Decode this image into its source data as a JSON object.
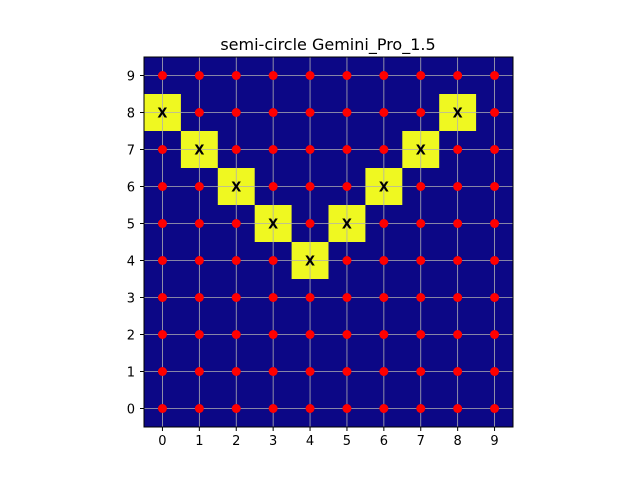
{
  "chart_data": {
    "type": "heatmap",
    "title": "semi-circle Gemini_Pro_1.5",
    "xlabel": "",
    "ylabel": "",
    "xlim": [
      -0.5,
      9.5
    ],
    "ylim": [
      -0.5,
      9.5
    ],
    "x_ticks": [
      "0",
      "1",
      "2",
      "3",
      "4",
      "5",
      "6",
      "7",
      "8",
      "9"
    ],
    "y_ticks": [
      "0",
      "1",
      "2",
      "3",
      "4",
      "5",
      "6",
      "7",
      "8",
      "9"
    ],
    "grid": true,
    "colors": {
      "background": "#0c0786",
      "highlight": "#eff821",
      "point": "#ff0000",
      "grid": "#b0b0b0"
    },
    "grid_points": {
      "x": [
        0,
        1,
        2,
        3,
        4,
        5,
        6,
        7,
        8,
        9
      ],
      "y": [
        0,
        1,
        2,
        3,
        4,
        5,
        6,
        7,
        8,
        9
      ]
    },
    "highlighted_cells": [
      {
        "x": 0,
        "y": 8,
        "label": "X"
      },
      {
        "x": 1,
        "y": 7,
        "label": "X"
      },
      {
        "x": 2,
        "y": 6,
        "label": "X"
      },
      {
        "x": 3,
        "y": 5,
        "label": "X"
      },
      {
        "x": 4,
        "y": 4,
        "label": "X"
      },
      {
        "x": 5,
        "y": 5,
        "label": "X"
      },
      {
        "x": 6,
        "y": 6,
        "label": "X"
      },
      {
        "x": 7,
        "y": 7,
        "label": "X"
      },
      {
        "x": 8,
        "y": 8,
        "label": "X"
      }
    ]
  }
}
